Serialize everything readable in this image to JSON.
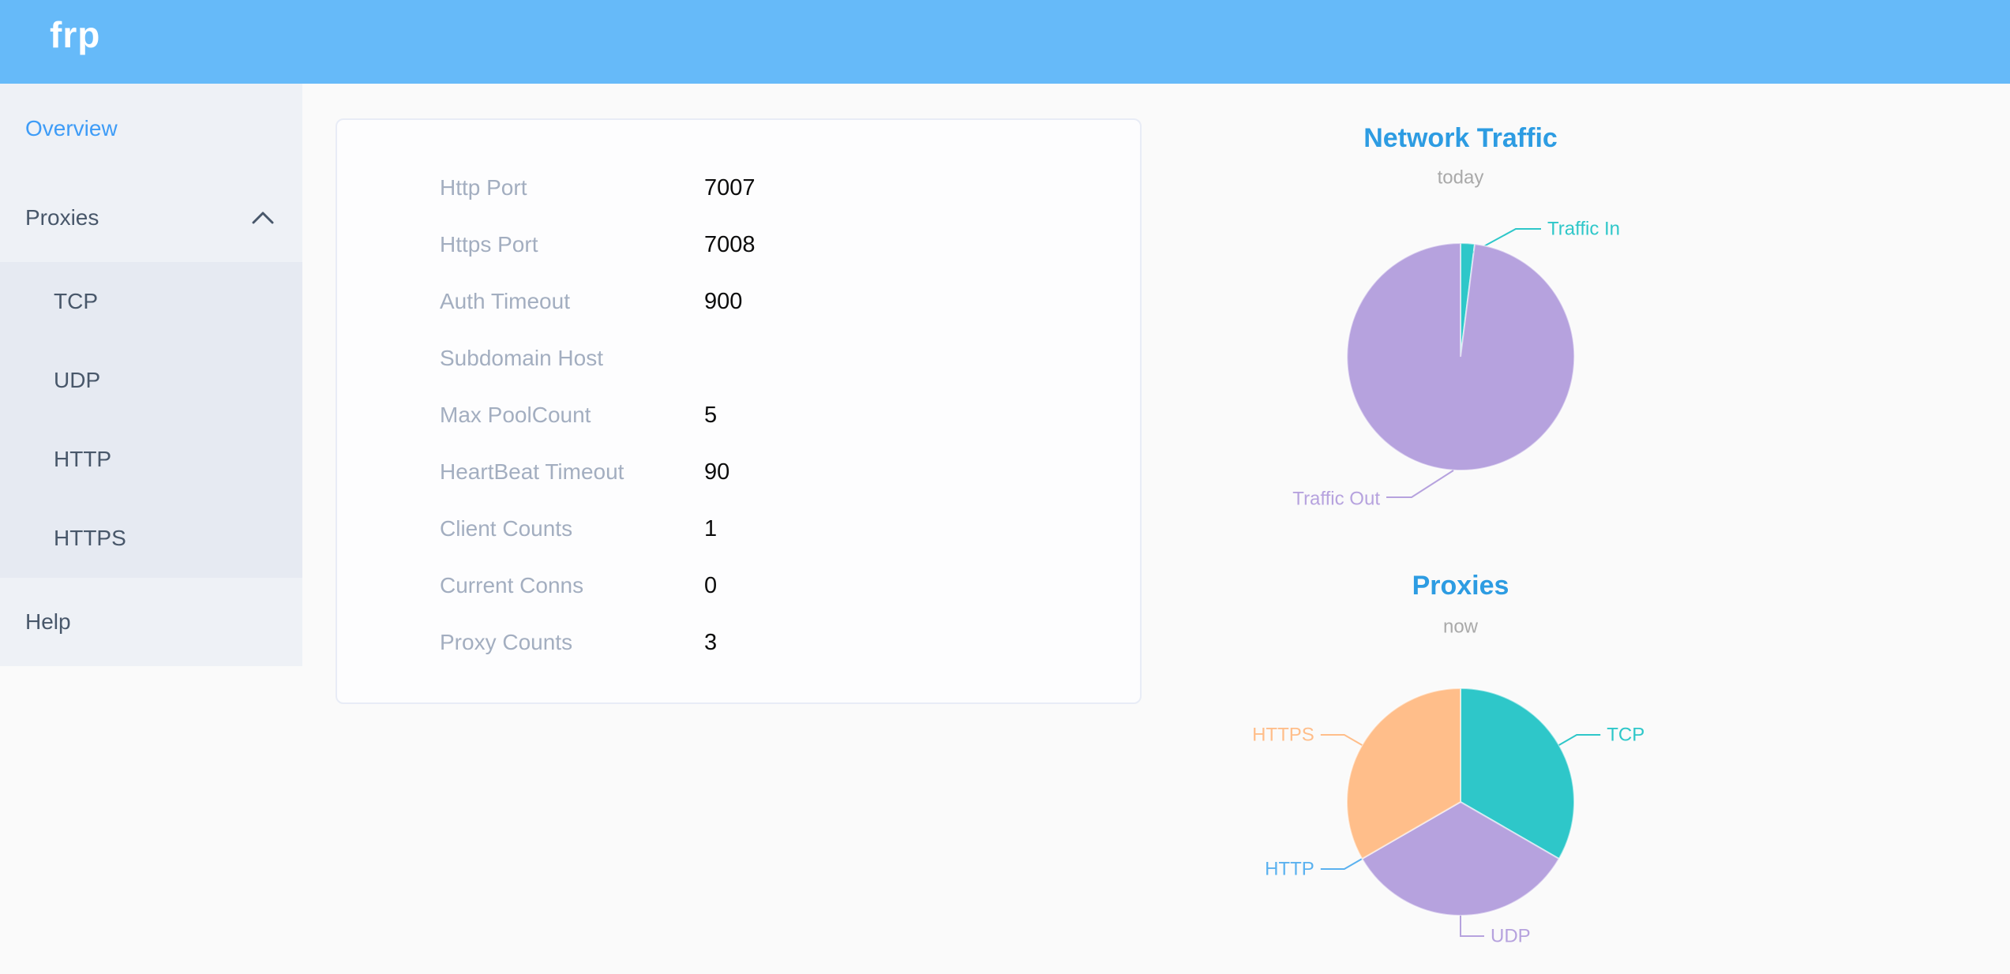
{
  "header": {
    "logo": "frp"
  },
  "sidebar": {
    "items": [
      {
        "label": "Overview",
        "active": true
      },
      {
        "label": "Proxies",
        "expanded": true
      },
      {
        "label": "Help"
      }
    ],
    "proxies_children": [
      {
        "label": "TCP"
      },
      {
        "label": "UDP"
      },
      {
        "label": "HTTP"
      },
      {
        "label": "HTTPS"
      }
    ]
  },
  "config": {
    "rows": [
      {
        "label": "Http Port",
        "value": "7007"
      },
      {
        "label": "Https Port",
        "value": "7008"
      },
      {
        "label": "Auth Timeout",
        "value": "900"
      },
      {
        "label": "Subdomain Host",
        "value": ""
      },
      {
        "label": "Max PoolCount",
        "value": "5"
      },
      {
        "label": "HeartBeat Timeout",
        "value": "90"
      },
      {
        "label": "Client Counts",
        "value": "1"
      },
      {
        "label": "Current Conns",
        "value": "0"
      },
      {
        "label": "Proxy Counts",
        "value": "3"
      }
    ]
  },
  "chart_data": [
    {
      "type": "pie",
      "title": "Network Traffic",
      "subtitle": "today",
      "labels": [
        "Traffic In",
        "Traffic Out"
      ],
      "values": [
        2,
        98
      ],
      "value_unit": "percent-of-total (estimated from slice angles)",
      "colors": [
        "#2ec7c9",
        "#b6a2de"
      ],
      "label_style": "outside-callout",
      "legend_position": "none"
    },
    {
      "type": "pie",
      "title": "Proxies",
      "subtitle": "now",
      "labels": [
        "TCP",
        "UDP",
        "HTTP",
        "HTTPS"
      ],
      "values": [
        1,
        1,
        0,
        1
      ],
      "value_unit": "proxy count",
      "colors": [
        "#2ec7c9",
        "#b6a2de",
        "#5ab1ef",
        "#ffbe8a"
      ],
      "label_style": "outside-callout",
      "legend_position": "none"
    }
  ],
  "colors": {
    "header_blue": "#66baf9",
    "sidebar_bg": "#eef1f6",
    "submenu_bg": "#e6eaf2",
    "active_item_blue": "#3e9cf7",
    "menu_text": "#48576a",
    "chart_title_blue": "#2d9ce2",
    "config_label_gray": "#a3aec0"
  }
}
